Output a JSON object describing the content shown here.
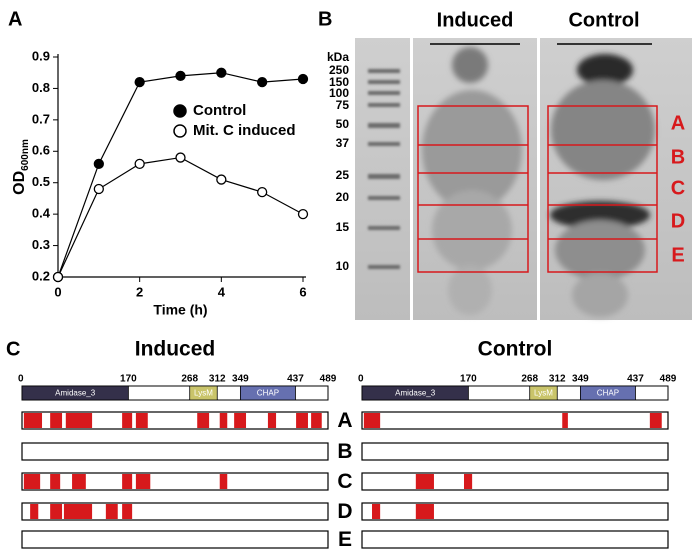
{
  "panel_labels": [
    "A",
    "B",
    "C"
  ],
  "chart_data": {
    "type": "line",
    "xlabel": "Time (h)",
    "ylabel": "OD",
    "ylabel_subscript": "600nm",
    "x": [
      0,
      1,
      2,
      3,
      4,
      5,
      6
    ],
    "series": [
      {
        "name": "Control",
        "color": "#000000",
        "marker_fill": "#000000",
        "values": [
          0.2,
          0.56,
          0.82,
          0.84,
          0.85,
          0.82,
          0.83
        ]
      },
      {
        "name": "Mit. C induced",
        "color": "#000000",
        "marker_fill": "#ffffff",
        "values": [
          0.2,
          0.48,
          0.56,
          0.58,
          0.51,
          0.47,
          0.4
        ]
      }
    ],
    "xlim": [
      0,
      6
    ],
    "ylim": [
      0.2,
      0.9
    ],
    "xticks": [
      0,
      2,
      4,
      6
    ],
    "yticks": [
      0.2,
      0.3,
      0.4,
      0.5,
      0.6,
      0.7,
      0.8,
      0.9
    ],
    "legend": "center right"
  },
  "gel": {
    "lanes": [
      "Induced",
      "Control"
    ],
    "unit": "kDa",
    "markers": [
      250,
      150,
      100,
      75,
      50,
      37,
      25,
      20,
      15,
      10
    ],
    "fractions": [
      "A",
      "B",
      "C",
      "D",
      "E"
    ]
  },
  "domains": {
    "length": 489,
    "scale_ticks": [
      0,
      170,
      268,
      312,
      349,
      437,
      489
    ],
    "features": [
      {
        "name": "Amidase_3",
        "start": 0,
        "end": 170,
        "color": "#34304a"
      },
      {
        "name": "LysM",
        "start": 268,
        "end": 312,
        "color": "#c9c46a"
      },
      {
        "name": "CHAP",
        "start": 349,
        "end": 437,
        "color": "#6670b0"
      }
    ],
    "rows": [
      "A",
      "B",
      "C",
      "D",
      "E"
    ],
    "coverage_color": "#d7191c",
    "panels": [
      {
        "title": "Induced",
        "coverage": [
          [
            [
              3,
              32
            ],
            [
              45,
              64
            ],
            [
              70,
              112
            ],
            [
              160,
              176
            ],
            [
              182,
              201
            ],
            [
              280,
              299
            ],
            [
              316,
              328
            ],
            [
              339,
              358
            ],
            [
              393,
              406
            ],
            [
              438,
              457
            ],
            [
              462,
              479
            ]
          ],
          [],
          [
            [
              3,
              29
            ],
            [
              45,
              61
            ],
            [
              80,
              102
            ],
            [
              160,
              176
            ],
            [
              182,
              205
            ],
            [
              316,
              328
            ]
          ],
          [
            [
              13,
              26
            ],
            [
              45,
              64
            ],
            [
              67,
              112
            ],
            [
              134,
              153
            ],
            [
              160,
              176
            ]
          ],
          []
        ]
      },
      {
        "title": "Control",
        "coverage": [
          [
            [
              3,
              29
            ],
            [
              320,
              329
            ],
            [
              460,
              479
            ]
          ],
          [],
          [
            [
              86,
              115
            ],
            [
              163,
              176
            ]
          ],
          [
            [
              16,
              29
            ],
            [
              86,
              115
            ]
          ],
          []
        ]
      }
    ]
  }
}
